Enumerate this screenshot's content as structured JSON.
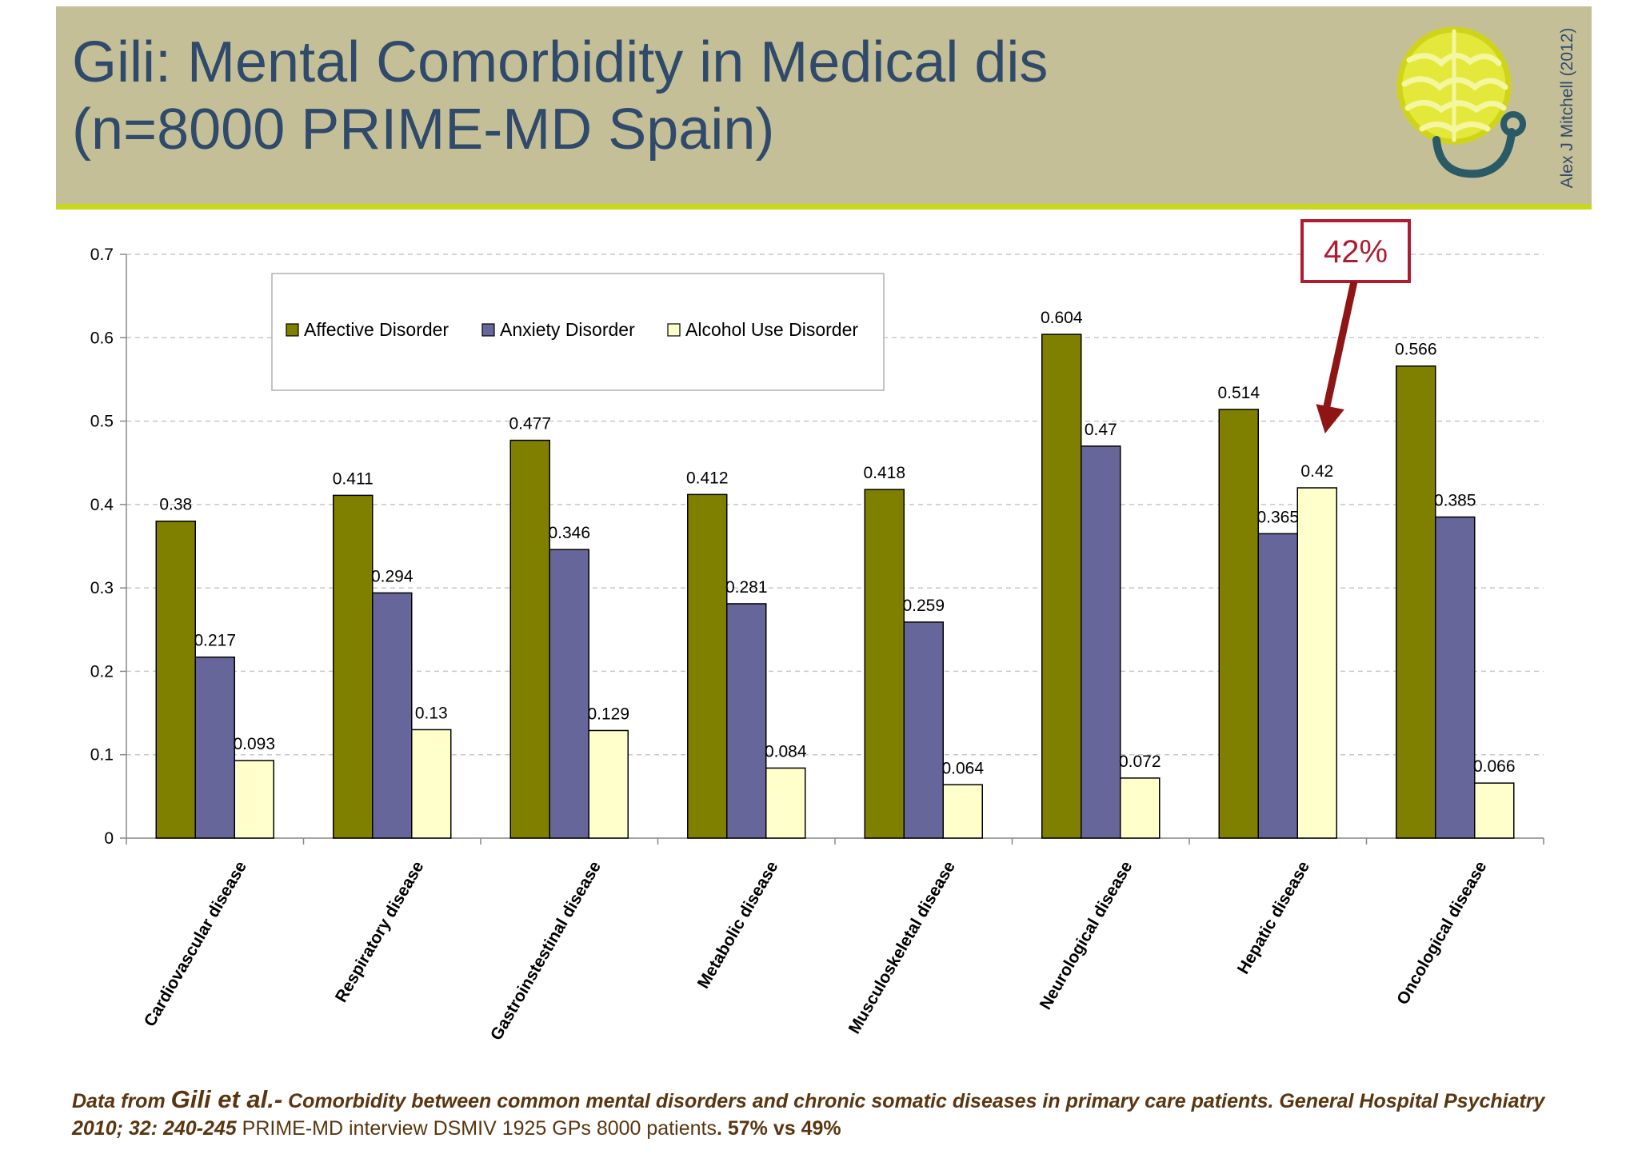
{
  "slide": {
    "title_line1": "Gili: Mental Comorbidity in Medical dis",
    "title_line2": "(n=8000 PRIME-MD Spain)",
    "credit": "Alex J Mitchell (2012)",
    "logo_icon": "brain-stethoscope-icon",
    "colors": {
      "header_bg": "#c5bf98",
      "header_line": "#c8d61c",
      "title": "#2f4a6a",
      "source_text": "#5a3610",
      "callout": "#b01c2e"
    }
  },
  "source": {
    "part1": "Data from ",
    "part2": "Gili et al.-",
    "part3": " Comorbidity between common mental disorders and chronic somatic diseases in primary care patients. General Hospital Psychiatry 2010; 32: 240-245",
    "part4": "  PRIME-MD interview DSMIV 1925 GPs 8000 patients",
    "part5": ". 57% vs 49%"
  },
  "chart_data": {
    "type": "bar",
    "categories": [
      "Cardiovascular disease",
      "Respiratory disease",
      "Gastroinstestinal disease",
      "Metabolic disease",
      "Musculoskeletal disease",
      "Neurological disease",
      "Hepatic disease",
      "Oncological disease"
    ],
    "series": [
      {
        "name": "Affective Disorder",
        "color": "#808000",
        "values": [
          0.38,
          0.411,
          0.477,
          0.412,
          0.418,
          0.604,
          0.514,
          0.566
        ],
        "labels": [
          "0.38",
          "0.411",
          "0.477",
          "0.412",
          "0.418",
          "0.604",
          "0.514",
          "0.566"
        ]
      },
      {
        "name": "Anxiety Disorder",
        "color": "#66669a",
        "values": [
          0.217,
          0.294,
          0.346,
          0.281,
          0.259,
          0.47,
          0.365,
          0.385
        ],
        "labels": [
          "0.217",
          "0.294",
          "0.346",
          "0.281",
          "0.259",
          "0.47",
          "0.365",
          "0.385"
        ]
      },
      {
        "name": "Alcohol Use Disorder",
        "color": "#ffffcc",
        "values": [
          0.093,
          0.13,
          0.129,
          0.084,
          0.064,
          0.072,
          0.42,
          0.066
        ],
        "labels": [
          "0.093",
          "0.13",
          "0.129",
          "0.084",
          "0.064",
          "0.072",
          "0.42",
          "0.066"
        ]
      }
    ],
    "ylim": [
      0,
      0.7
    ],
    "yticks": [
      "0",
      "0.1",
      "0.2",
      "0.3",
      "0.4",
      "0.5",
      "0.6",
      "0.7"
    ],
    "ytick_values": [
      0,
      0.1,
      0.2,
      0.3,
      0.4,
      0.5,
      0.6,
      0.7
    ],
    "grid": true,
    "legend_position": "top-left",
    "annotation": {
      "text": "42%",
      "category": "Hepatic disease",
      "series": "Alcohol Use Disorder"
    }
  }
}
